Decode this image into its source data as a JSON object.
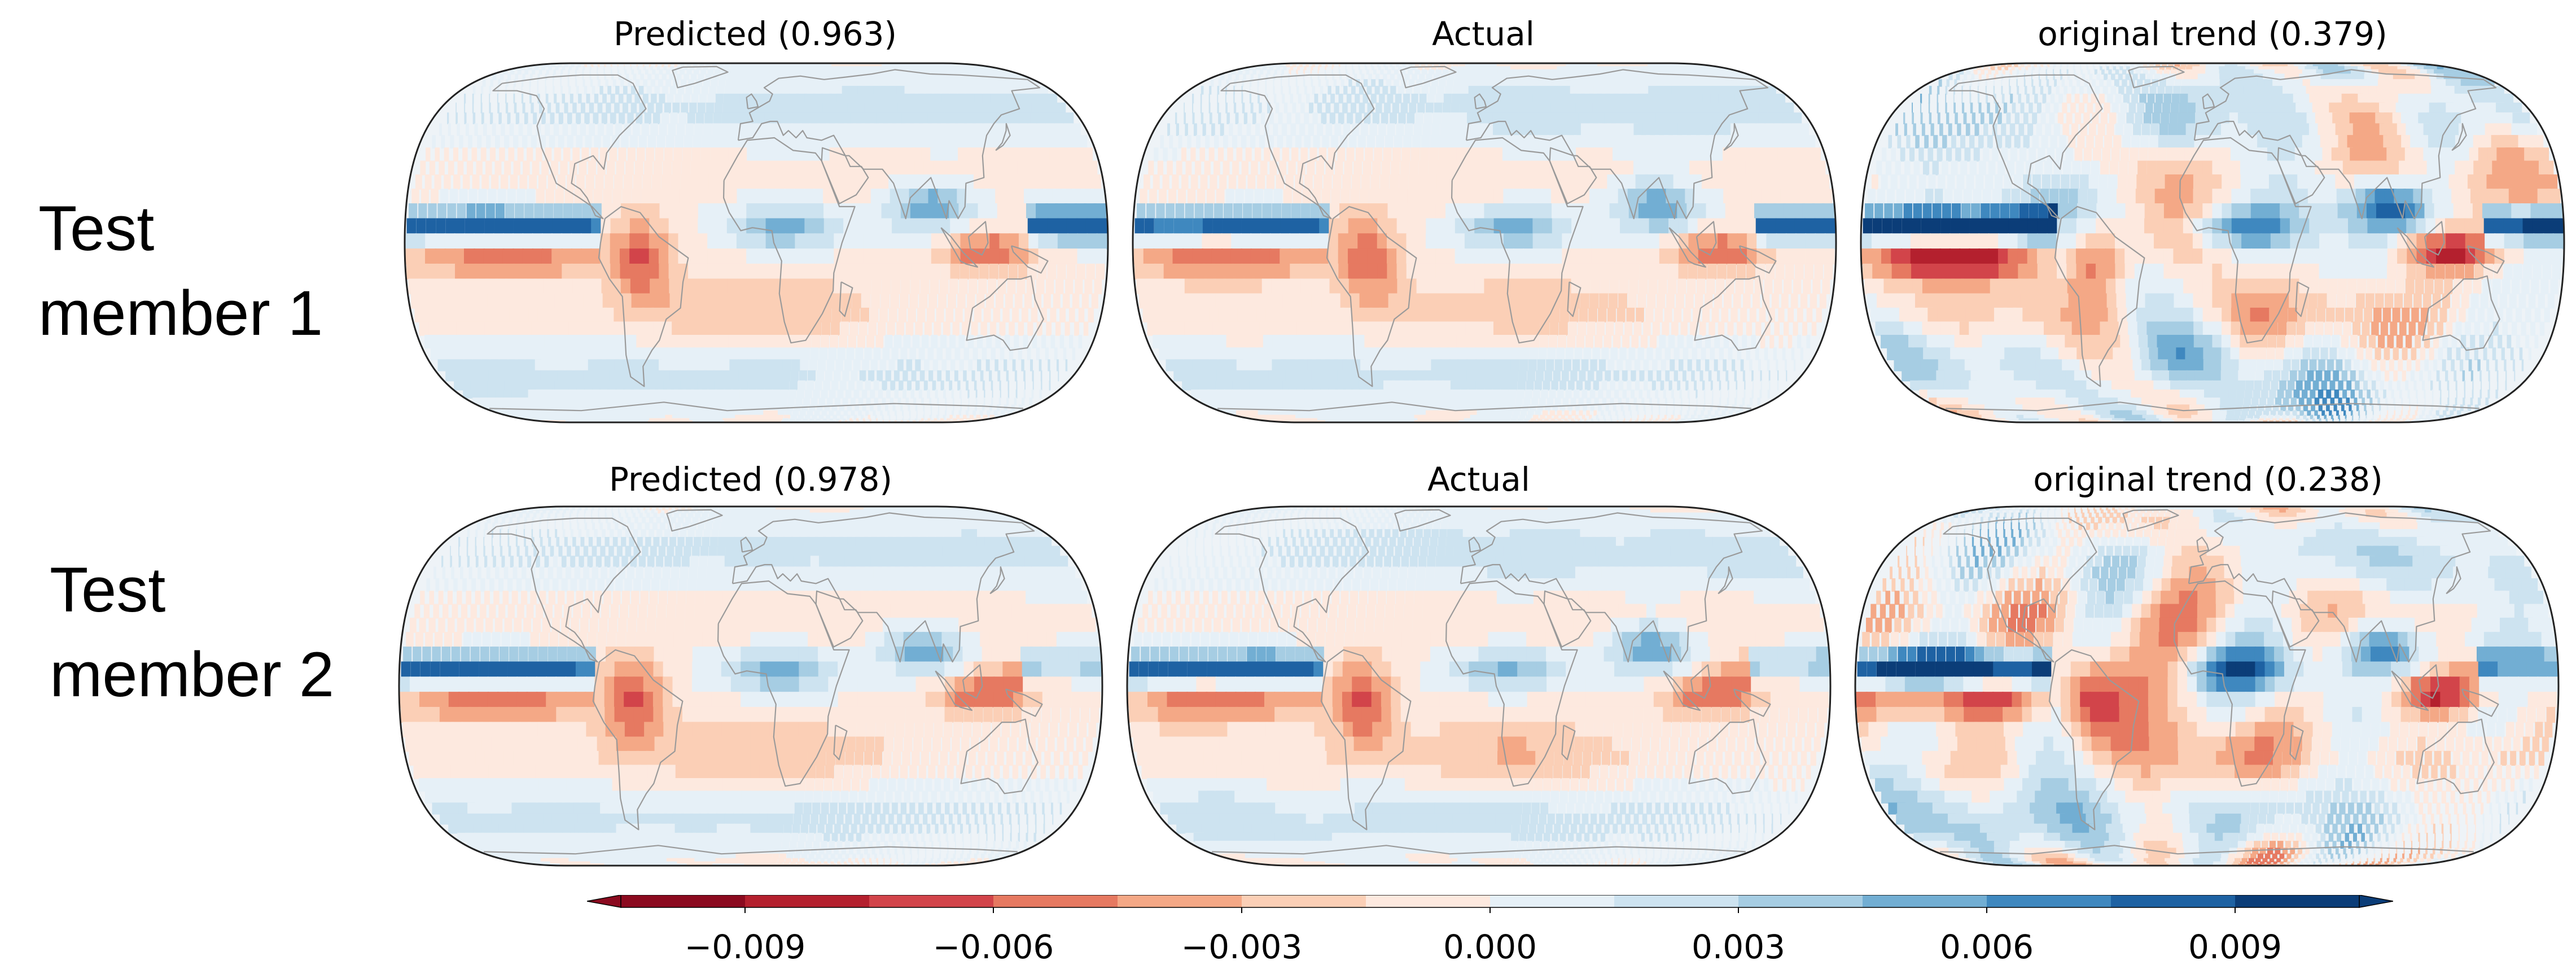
{
  "rows": [
    {
      "label": "Test\nmember 1",
      "panels": [
        {
          "title": "Predicted (0.963)",
          "field": "predicted"
        },
        {
          "title": "Actual",
          "field": "actual"
        },
        {
          "title": "original trend (0.379)",
          "field": "original_trend"
        }
      ]
    },
    {
      "label": "Test\nmember 2",
      "panels": [
        {
          "title": "Predicted (0.978)",
          "field": "predicted"
        },
        {
          "title": "Actual",
          "field": "actual"
        },
        {
          "title": "original trend (0.238)",
          "field": "original_trend"
        }
      ]
    }
  ],
  "colorbar": {
    "colormap": "RdBu",
    "extend": "both",
    "min": -0.0105,
    "max": 0.0105,
    "levels": 14,
    "tick_labels": [
      "−0.009",
      "−0.006",
      "−0.003",
      "0.000",
      "0.003",
      "0.006",
      "0.009"
    ],
    "tick_values": [
      -0.009,
      -0.006,
      -0.003,
      0.0,
      0.003,
      0.006,
      0.009
    ],
    "colors": [
      "#8b0a1f",
      "#b4202e",
      "#d2444a",
      "#e67961",
      "#f4a886",
      "#fbcfb6",
      "#fde9df",
      "#e6f0f7",
      "#cde3f0",
      "#a6cde3",
      "#72aed3",
      "#3f88bf",
      "#1e62a3",
      "#0b3d78"
    ]
  }
}
